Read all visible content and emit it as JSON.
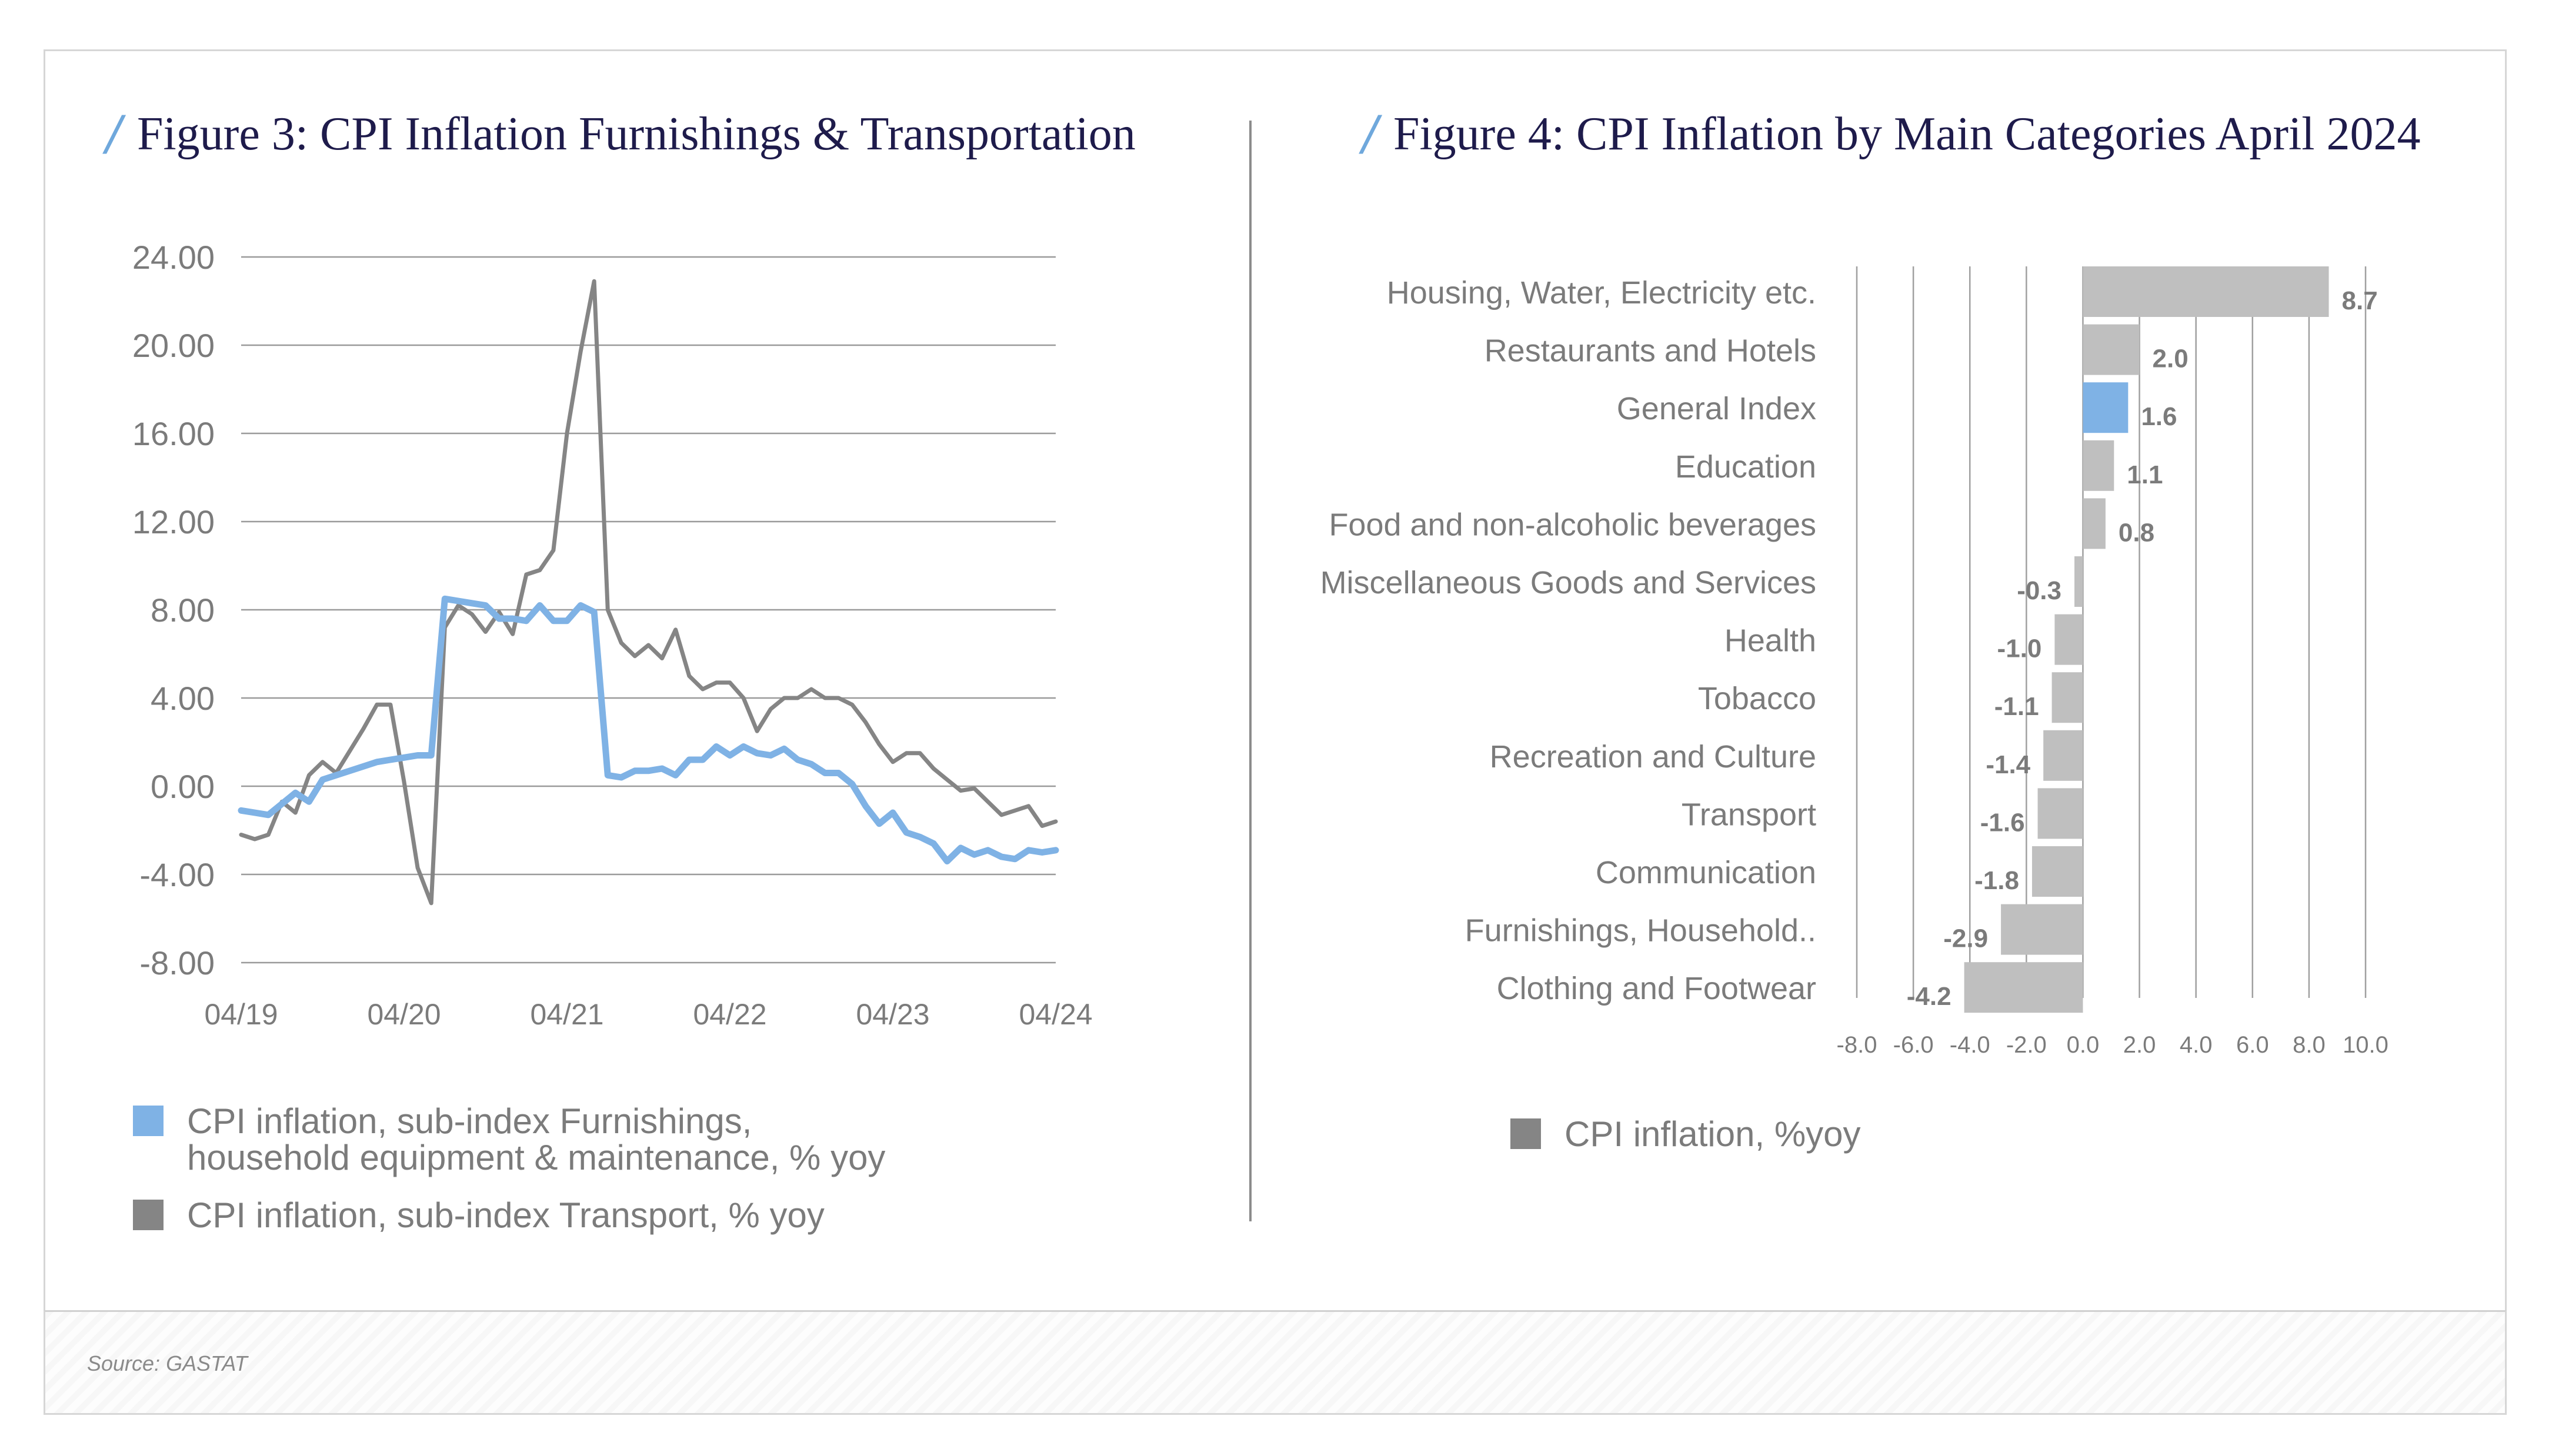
{
  "source": "Source: GASTAT",
  "colors": {
    "blue": "#7fb2e5",
    "gray": "#858585",
    "bar_gray": "#bfbfbf",
    "title": "#1e1b4b",
    "slash": "#6fa8dc"
  },
  "chart_data": [
    {
      "type": "line",
      "title": "Figure 3: CPI Inflation Furnishings & Transportation",
      "title_slash": "/",
      "ylim": [
        -8,
        24
      ],
      "yticks": [
        "24.00",
        "20.00",
        "16.00",
        "12.00",
        "8.00",
        "4.00",
        "0.00",
        "-4.00",
        "-8.00"
      ],
      "ytick_values": [
        24,
        20,
        16,
        12,
        8,
        4,
        0,
        -4,
        -8
      ],
      "xticks": [
        "04/19",
        "04/20",
        "04/21",
        "04/22",
        "04/23",
        "04/24"
      ],
      "xtick_index": [
        0,
        12,
        24,
        36,
        48,
        60
      ],
      "grid": true,
      "legend_placement": "bottom",
      "series": [
        {
          "name": "CPI inflation, sub-index Furnishings, household equipment & maintenance, % yoy",
          "legend_line1": "CPI inflation, sub-index Furnishings,",
          "legend_line2": "household equipment & maintenance, % yoy",
          "color": "#7fb2e5",
          "values": [
            -1.1,
            -1.2,
            -1.3,
            -0.8,
            -0.3,
            -0.7,
            0.3,
            0.5,
            0.7,
            0.9,
            1.1,
            1.2,
            1.3,
            1.4,
            1.4,
            8.5,
            8.4,
            8.3,
            8.2,
            7.6,
            7.6,
            7.5,
            8.2,
            7.5,
            7.5,
            8.2,
            7.9,
            0.5,
            0.4,
            0.7,
            0.7,
            0.8,
            0.5,
            1.2,
            1.2,
            1.8,
            1.4,
            1.8,
            1.5,
            1.4,
            1.7,
            1.2,
            1.0,
            0.6,
            0.6,
            0.1,
            -0.9,
            -1.7,
            -1.2,
            -2.1,
            -2.3,
            -2.6,
            -3.4,
            -2.8,
            -3.1,
            -2.9,
            -3.2,
            -3.3,
            -2.9,
            -3.0,
            -2.9
          ]
        },
        {
          "name": "CPI inflation, sub-index Transport, % yoy",
          "legend_line1": "CPI inflation, sub-index Transport, % yoy",
          "color": "#858585",
          "values": [
            -2.2,
            -2.4,
            -2.2,
            -0.7,
            -1.2,
            0.5,
            1.1,
            0.6,
            1.6,
            2.6,
            3.7,
            3.7,
            0.2,
            -3.7,
            -5.3,
            7.2,
            8.2,
            7.8,
            7.0,
            7.9,
            6.9,
            9.6,
            9.8,
            10.7,
            16.0,
            19.7,
            22.9,
            8.0,
            6.5,
            5.9,
            6.4,
            5.8,
            7.1,
            5.0,
            4.4,
            4.7,
            4.7,
            4.0,
            2.5,
            3.5,
            4.0,
            4.0,
            4.4,
            4.0,
            4.0,
            3.7,
            2.9,
            1.9,
            1.1,
            1.5,
            1.5,
            0.8,
            0.3,
            -0.2,
            -0.1,
            -0.7,
            -1.3,
            -1.1,
            -0.9,
            -1.8,
            -1.6
          ]
        }
      ]
    },
    {
      "type": "bar",
      "orientation": "horizontal",
      "title": "Figure 4: CPI Inflation by Main Categories April 2024",
      "title_slash": "/",
      "categories": [
        "Housing, Water, Electricity etc.",
        "Restaurants and Hotels",
        "General Index",
        "Education",
        "Food and non-alcoholic beverages",
        "Miscellaneous Goods and Services",
        "Health",
        "Tobacco",
        "Recreation and Culture",
        "Transport",
        "Communication",
        "Furnishings, Household..",
        "Clothing and Footwear"
      ],
      "values": [
        8.7,
        2.0,
        1.6,
        1.1,
        0.8,
        -0.3,
        -1.0,
        -1.1,
        -1.4,
        -1.6,
        -1.8,
        -2.9,
        -4.2
      ],
      "value_labels": [
        "8.7",
        "2.0",
        "1.6",
        "1.1",
        "0.8",
        "-0.3",
        "-1.0",
        "-1.1",
        "-1.4",
        "-1.6",
        "-1.8",
        "-2.9",
        "-4.2"
      ],
      "highlight": "General Index",
      "xlim": [
        -8,
        10
      ],
      "xticks": [
        "-8.0",
        "-6.0",
        "-4.0",
        "-2.0",
        "0.0",
        "2.0",
        "4.0",
        "6.0",
        "8.0",
        "10.0"
      ],
      "xtick_values": [
        -8,
        -6,
        -4,
        -2,
        0,
        2,
        4,
        6,
        8,
        10
      ],
      "grid": true,
      "legend_placement": "bottom-left",
      "legend": "CPI inflation, %yoy"
    }
  ]
}
